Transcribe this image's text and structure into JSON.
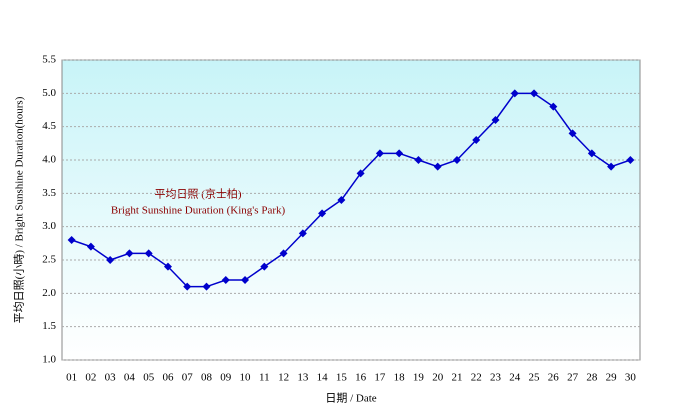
{
  "chart_data": {
    "type": "line",
    "x_label": "日期 / Date",
    "y_label": "平均日照(小時) / Bright Sunshine Duration(hours)",
    "annotations": [
      "平均日照 (京士柏)",
      "Bright Sunshine Duration (King's Park)"
    ],
    "categories": [
      "01",
      "02",
      "03",
      "04",
      "05",
      "06",
      "07",
      "08",
      "09",
      "10",
      "11",
      "12",
      "13",
      "14",
      "15",
      "16",
      "17",
      "18",
      "19",
      "20",
      "21",
      "22",
      "23",
      "24",
      "25",
      "26",
      "27",
      "28",
      "29",
      "30"
    ],
    "values": [
      2.8,
      2.7,
      2.5,
      2.6,
      2.6,
      2.4,
      2.1,
      2.1,
      2.2,
      2.2,
      2.4,
      2.6,
      2.9,
      3.2,
      3.4,
      3.8,
      4.1,
      4.1,
      4.0,
      3.9,
      4.0,
      4.3,
      4.6,
      5.0,
      5.0,
      4.8,
      4.4,
      4.1,
      3.9,
      4.0
    ],
    "color": "#0000cc",
    "ylim": [
      1,
      5.5
    ],
    "yticks": [
      {
        "value": 1,
        "label": "1.0"
      },
      1.5,
      {
        "value": 2,
        "label": "2.0"
      },
      2.5,
      {
        "value": 3,
        "label": "3.0"
      },
      3.5,
      {
        "value": 4,
        "label": "4.0"
      },
      4.5,
      {
        "value": 5,
        "label": "5.0"
      },
      5.5
    ],
    "grid": true
  }
}
